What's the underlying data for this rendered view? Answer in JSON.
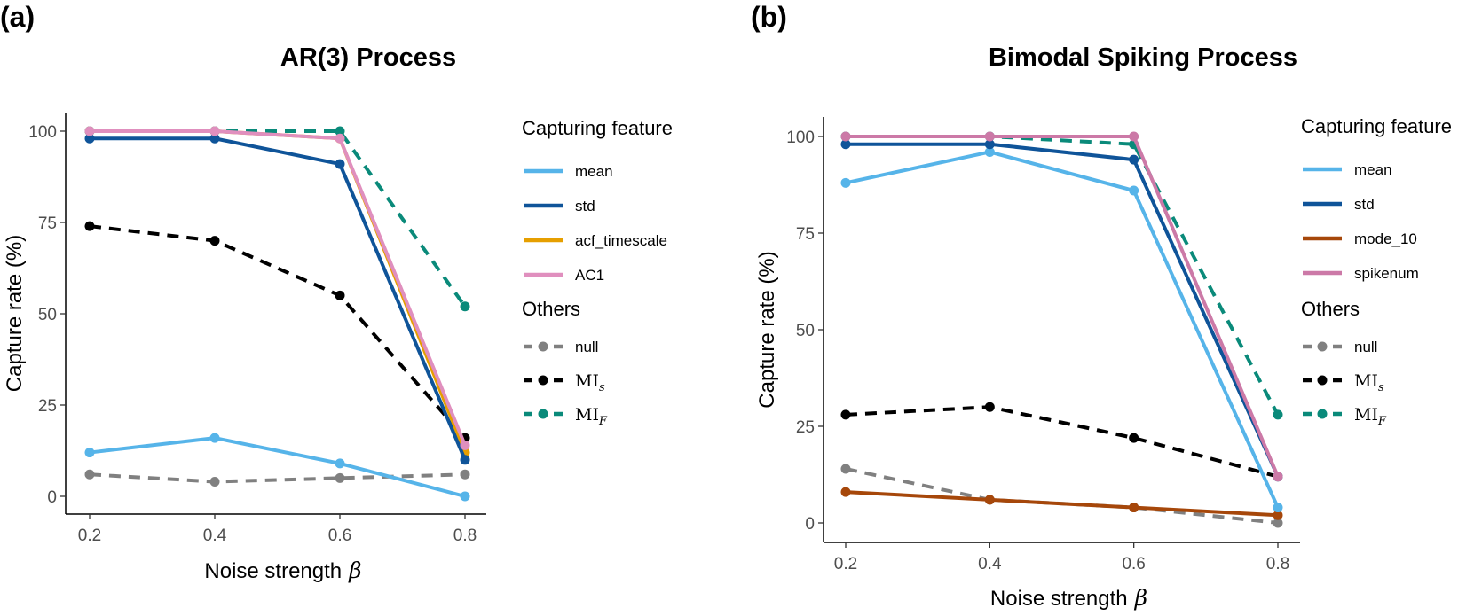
{
  "colors": {
    "mean": "#56B4E9",
    "std": "#0F5499",
    "acf_timescale": "#E69F00",
    "AC1": "#E08FBE",
    "mode_10": "#A6470A",
    "spikenum": "#CC79A7",
    "null": "#808080",
    "MI_s": "#000000",
    "MI_F": "#0A8A7A"
  },
  "chart_data": [
    {
      "type": "line",
      "panel_label": "(a)",
      "title": "AR(3) Process",
      "xlabel": "Noise strength",
      "xlabel_symbol": "β",
      "ylabel": "Capture rate (%)",
      "x": [
        0.2,
        0.4,
        0.6,
        0.8
      ],
      "x_ticks": [
        "0.2",
        "0.4",
        "0.6",
        "0.8"
      ],
      "y_ticks": [
        "0",
        "25",
        "50",
        "75",
        "100"
      ],
      "xlim": [
        0.2,
        0.8
      ],
      "ylim": [
        0,
        100
      ],
      "grid": false,
      "legend_position": "right",
      "legend_groups": [
        {
          "title": "Capturing feature",
          "items": [
            {
              "label": "mean",
              "key": "mean",
              "dashed": false
            },
            {
              "label": "std",
              "key": "std",
              "dashed": false
            },
            {
              "label": "acf_timescale",
              "key": "acf_timescale",
              "dashed": false
            },
            {
              "label": "AC1",
              "key": "AC1",
              "dashed": false
            }
          ]
        },
        {
          "title": "Others",
          "items": [
            {
              "label": "null",
              "key": "null",
              "dashed": true
            },
            {
              "label": "MI",
              "sub": "s",
              "key": "MI_s",
              "dashed": true
            },
            {
              "label": "MI",
              "sub": "F",
              "key": "MI_F",
              "dashed": true
            }
          ]
        }
      ],
      "series": [
        {
          "name": "null",
          "key": "null",
          "dashed": true,
          "values": [
            6,
            4,
            5,
            6
          ]
        },
        {
          "name": "mean",
          "key": "mean",
          "dashed": false,
          "values": [
            12,
            16,
            9,
            0
          ]
        },
        {
          "name": "MI_s",
          "key": "MI_s",
          "dashed": true,
          "values": [
            74,
            70,
            55,
            16
          ]
        },
        {
          "name": "acf_timescale",
          "key": "acf_timescale",
          "dashed": false,
          "values": [
            100,
            100,
            98,
            12
          ]
        },
        {
          "name": "std",
          "key": "std",
          "dashed": false,
          "values": [
            98,
            98,
            91,
            10
          ]
        },
        {
          "name": "MI_F",
          "key": "MI_F",
          "dashed": true,
          "values": [
            100,
            100,
            100,
            52
          ]
        },
        {
          "name": "AC1",
          "key": "AC1",
          "dashed": false,
          "values": [
            100,
            100,
            98,
            14
          ]
        }
      ]
    },
    {
      "type": "line",
      "panel_label": "(b)",
      "title": "Bimodal Spiking Process",
      "xlabel": "Noise strength",
      "xlabel_symbol": "β",
      "ylabel": "Capture rate (%)",
      "x": [
        0.2,
        0.4,
        0.6,
        0.8
      ],
      "x_ticks": [
        "0.2",
        "0.4",
        "0.6",
        "0.8"
      ],
      "y_ticks": [
        "0",
        "25",
        "50",
        "75",
        "100"
      ],
      "xlim": [
        0.2,
        0.8
      ],
      "ylim": [
        0,
        100
      ],
      "grid": false,
      "legend_position": "right",
      "legend_groups": [
        {
          "title": "Capturing feature",
          "items": [
            {
              "label": "mean",
              "key": "mean",
              "dashed": false
            },
            {
              "label": "std",
              "key": "std",
              "dashed": false
            },
            {
              "label": "mode_10",
              "key": "mode_10",
              "dashed": false
            },
            {
              "label": "spikenum",
              "key": "spikenum",
              "dashed": false
            }
          ]
        },
        {
          "title": "Others",
          "items": [
            {
              "label": "null",
              "key": "null",
              "dashed": true
            },
            {
              "label": "MI",
              "sub": "s",
              "key": "MI_s",
              "dashed": true
            },
            {
              "label": "MI",
              "sub": "F",
              "key": "MI_F",
              "dashed": true
            }
          ]
        }
      ],
      "series": [
        {
          "name": "null",
          "key": "null",
          "dashed": true,
          "values": [
            14,
            6,
            4,
            0
          ]
        },
        {
          "name": "mode_10",
          "key": "mode_10",
          "dashed": false,
          "values": [
            8,
            6,
            4,
            2
          ]
        },
        {
          "name": "MI_s",
          "key": "MI_s",
          "dashed": true,
          "values": [
            28,
            30,
            22,
            12
          ]
        },
        {
          "name": "mean",
          "key": "mean",
          "dashed": false,
          "values": [
            88,
            96,
            86,
            4
          ]
        },
        {
          "name": "MI_F",
          "key": "MI_F",
          "dashed": true,
          "values": [
            100,
            100,
            98,
            28
          ]
        },
        {
          "name": "std",
          "key": "std",
          "dashed": false,
          "values": [
            98,
            98,
            94,
            12
          ]
        },
        {
          "name": "spikenum",
          "key": "spikenum",
          "dashed": false,
          "values": [
            100,
            100,
            100,
            12
          ]
        }
      ]
    }
  ]
}
